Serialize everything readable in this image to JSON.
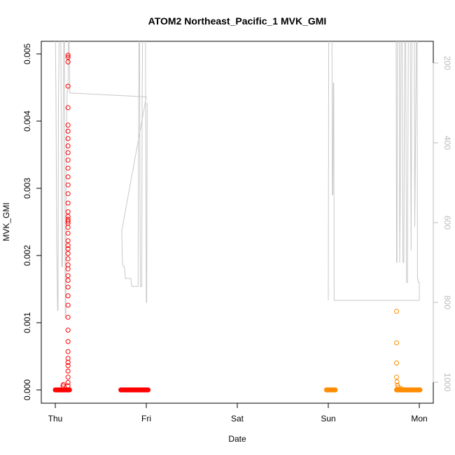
{
  "chart_data": {
    "type": "scatter",
    "title": "ATOM2 Northeast_Pacific_1 MVK_GMI",
    "xlabel": "Date",
    "ylabel": "MVK_GMI",
    "x_ticks": [
      "Thu",
      "Fri",
      "Sat",
      "Sun",
      "Mon"
    ],
    "x_tick_positions": [
      0,
      1,
      2,
      3,
      4
    ],
    "xlim": [
      -0.2,
      4.17
    ],
    "ylim": [
      0,
      0.00515
    ],
    "y_ticks": [
      0.0,
      0.001,
      0.002,
      0.003,
      0.004,
      0.005
    ],
    "y_tick_labels": [
      "0.000",
      "0.001",
      "0.002",
      "0.003",
      "0.004",
      "0.005"
    ],
    "right_axis": {
      "ticks": [
        200,
        400,
        600,
        800,
        1000
      ],
      "tick_labels": [
        "200",
        "400",
        "600",
        "800",
        "1000"
      ],
      "range_top_to_bottom": [
        100,
        1025
      ],
      "color": "#bbbbbb"
    },
    "series": [
      {
        "color": "#ff0000",
        "marker": "open-circle",
        "points": [
          [
            0.14,
            0.00498
          ],
          [
            0.14,
            0.00495
          ],
          [
            0.14,
            0.00488
          ],
          [
            0.14,
            0.00452
          ],
          [
            0.14,
            0.0042
          ],
          [
            0.14,
            0.00394
          ],
          [
            0.14,
            0.00385
          ],
          [
            0.14,
            0.00374
          ],
          [
            0.14,
            0.00363
          ],
          [
            0.14,
            0.00353
          ],
          [
            0.14,
            0.00342
          ],
          [
            0.14,
            0.0033
          ],
          [
            0.14,
            0.00317
          ],
          [
            0.14,
            0.00305
          ],
          [
            0.14,
            0.00292
          ],
          [
            0.14,
            0.00278
          ],
          [
            0.14,
            0.00265
          ],
          [
            0.14,
            0.00258
          ],
          [
            0.14,
            0.00254
          ],
          [
            0.14,
            0.00251
          ],
          [
            0.14,
            0.00248
          ],
          [
            0.14,
            0.00242
          ],
          [
            0.14,
            0.00233
          ],
          [
            0.14,
            0.00222
          ],
          [
            0.14,
            0.00215
          ],
          [
            0.14,
            0.0021
          ],
          [
            0.14,
            0.00203
          ],
          [
            0.14,
            0.00195
          ],
          [
            0.14,
            0.00186
          ],
          [
            0.14,
            0.0018
          ],
          [
            0.14,
            0.0017
          ],
          [
            0.14,
            0.00163
          ],
          [
            0.14,
            0.00153
          ],
          [
            0.14,
            0.0014
          ],
          [
            0.14,
            0.00126
          ],
          [
            0.14,
            0.00108
          ],
          [
            0.14,
            0.00089
          ],
          [
            0.14,
            0.00072
          ],
          [
            0.14,
            0.00057
          ],
          [
            0.14,
            0.00047
          ],
          [
            0.14,
            0.00041
          ],
          [
            0.14,
            0.00036
          ],
          [
            0.14,
            0.00028
          ],
          [
            0.14,
            0.00019
          ],
          [
            0.14,
            0.00011
          ],
          [
            0.14,
            6e-05
          ],
          [
            0.09,
            8e-05
          ],
          [
            0.085,
            6e-05
          ]
        ],
        "baseline_segments": [
          [
            0.0,
            0.16,
            0.0
          ],
          [
            0.72,
            1.02,
            0.0
          ]
        ]
      },
      {
        "color": "#ff8c00",
        "marker": "open-circle",
        "points": [
          [
            3.75,
            0.00117
          ],
          [
            3.75,
            0.0007
          ],
          [
            3.75,
            0.0004
          ],
          [
            3.75,
            0.00019
          ],
          [
            3.755,
            0.00012
          ],
          [
            3.76,
            7e-05
          ],
          [
            3.77,
            4e-05
          ],
          [
            3.8,
            2e-05
          ]
        ],
        "baseline_segments": [
          [
            2.98,
            3.08,
            0.0
          ],
          [
            3.75,
            4.01,
            0.0
          ]
        ]
      }
    ],
    "pressure_line": {
      "color": "#c8c8c8",
      "description": "Light-gray line on right axis (values 100–1025, inverted)",
      "path": [
        [
          0.0,
          100
        ],
        [
          0.008,
          300
        ],
        [
          0.015,
          650
        ],
        [
          0.025,
          820
        ],
        [
          0.03,
          820
        ],
        [
          0.035,
          300
        ],
        [
          0.045,
          100
        ],
        [
          0.06,
          100
        ],
        [
          0.065,
          350
        ],
        [
          0.07,
          710
        ],
        [
          0.08,
          710
        ],
        [
          0.085,
          400
        ],
        [
          0.095,
          100
        ],
        [
          0.1,
          100
        ],
        [
          0.105,
          500
        ],
        [
          0.11,
          840
        ],
        [
          0.115,
          830
        ],
        [
          0.12,
          500
        ],
        [
          0.13,
          270
        ],
        [
          0.14,
          270
        ],
        [
          0.145,
          100
        ],
        [
          0.15,
          100
        ],
        [
          0.16,
          275
        ],
        [
          1.0,
          285
        ],
        [
          0.73,
          620
        ],
        [
          0.735,
          680
        ],
        [
          0.74,
          705
        ],
        [
          0.75,
          710
        ],
        [
          0.76,
          710
        ],
        [
          0.77,
          740
        ],
        [
          0.83,
          740
        ],
        [
          0.84,
          760
        ],
        [
          0.91,
          760
        ],
        [
          0.915,
          400
        ],
        [
          0.92,
          100
        ],
        [
          0.925,
          100
        ],
        [
          0.93,
          500
        ],
        [
          0.935,
          760
        ],
        [
          0.95,
          760
        ],
        [
          0.955,
          300
        ],
        [
          0.96,
          100
        ],
        [
          0.99,
          100
        ],
        [
          0.995,
          400
        ],
        [
          1.0,
          800
        ],
        [
          1.005,
          800
        ],
        [
          1.01,
          300
        ]
      ],
      "segments_sun_mon": [
        [
          3.0,
          795
        ],
        [
          3.005,
          100
        ],
        [
          3.04,
          100
        ],
        [
          3.045,
          530
        ],
        [
          3.05,
          530
        ],
        [
          3.055,
          250
        ],
        [
          3.06,
          250
        ],
        [
          3.065,
          795
        ],
        [
          3.85,
          795
        ],
        [
          3.9,
          795
        ],
        [
          4.0,
          795
        ],
        [
          4.0,
          750
        ],
        [
          3.99,
          750
        ],
        [
          3.985,
          740
        ],
        [
          3.98,
          740
        ],
        [
          3.975,
          100
        ],
        [
          3.97,
          100
        ],
        [
          3.95,
          610
        ],
        [
          3.945,
          100
        ],
        [
          3.92,
          100
        ],
        [
          3.91,
          670
        ],
        [
          3.9,
          100
        ],
        [
          3.88,
          100
        ],
        [
          3.87,
          750
        ],
        [
          3.86,
          750
        ],
        [
          3.85,
          100
        ],
        [
          3.84,
          100
        ],
        [
          3.83,
          700
        ],
        [
          3.82,
          700
        ],
        [
          3.81,
          100
        ],
        [
          3.8,
          100
        ],
        [
          3.79,
          560
        ],
        [
          3.785,
          700
        ],
        [
          3.78,
          100
        ],
        [
          3.76,
          100
        ],
        [
          3.755,
          700
        ],
        [
          3.75,
          700
        ],
        [
          3.745,
          100
        ]
      ]
    }
  }
}
